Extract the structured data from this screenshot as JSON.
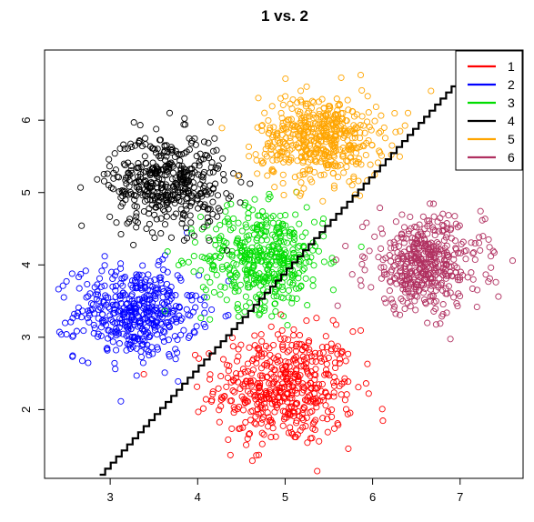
{
  "chart_data": {
    "type": "scatter",
    "title": "1 vs. 2",
    "xlabel": "",
    "ylabel": "",
    "xlim": [
      2.25,
      7.72
    ],
    "ylim": [
      1.05,
      6.97
    ],
    "x_ticks": [
      3,
      4,
      5,
      6,
      7
    ],
    "y_ticks": [
      2,
      3,
      4,
      5,
      6
    ],
    "legend": {
      "position": "top-right"
    },
    "series": [
      {
        "name": "1",
        "color": "#ff0000",
        "center": [
          5.0,
          2.3
        ],
        "spread": [
          0.4,
          0.4
        ],
        "n": 500
      },
      {
        "name": "2",
        "color": "#0000ff",
        "center": [
          3.3,
          3.35
        ],
        "spread": [
          0.35,
          0.32
        ],
        "n": 450
      },
      {
        "name": "3",
        "color": "#00dd00",
        "center": [
          4.75,
          4.1
        ],
        "spread": [
          0.35,
          0.35
        ],
        "n": 450
      },
      {
        "name": "4",
        "color": "#000000",
        "center": [
          3.65,
          5.15
        ],
        "spread": [
          0.33,
          0.33
        ],
        "n": 450
      },
      {
        "name": "5",
        "color": "#ffa500",
        "center": [
          5.4,
          5.75
        ],
        "spread": [
          0.35,
          0.3
        ],
        "n": 500
      },
      {
        "name": "6",
        "color": "#b03060",
        "center": [
          6.6,
          4.0
        ],
        "spread": [
          0.33,
          0.33
        ],
        "n": 450
      }
    ],
    "decision_boundary": {
      "name": "1 vs. 2 boundary",
      "color": "#000000",
      "from": [
        2.88,
        1.1
      ],
      "to": [
        7.28,
        6.97
      ]
    }
  }
}
